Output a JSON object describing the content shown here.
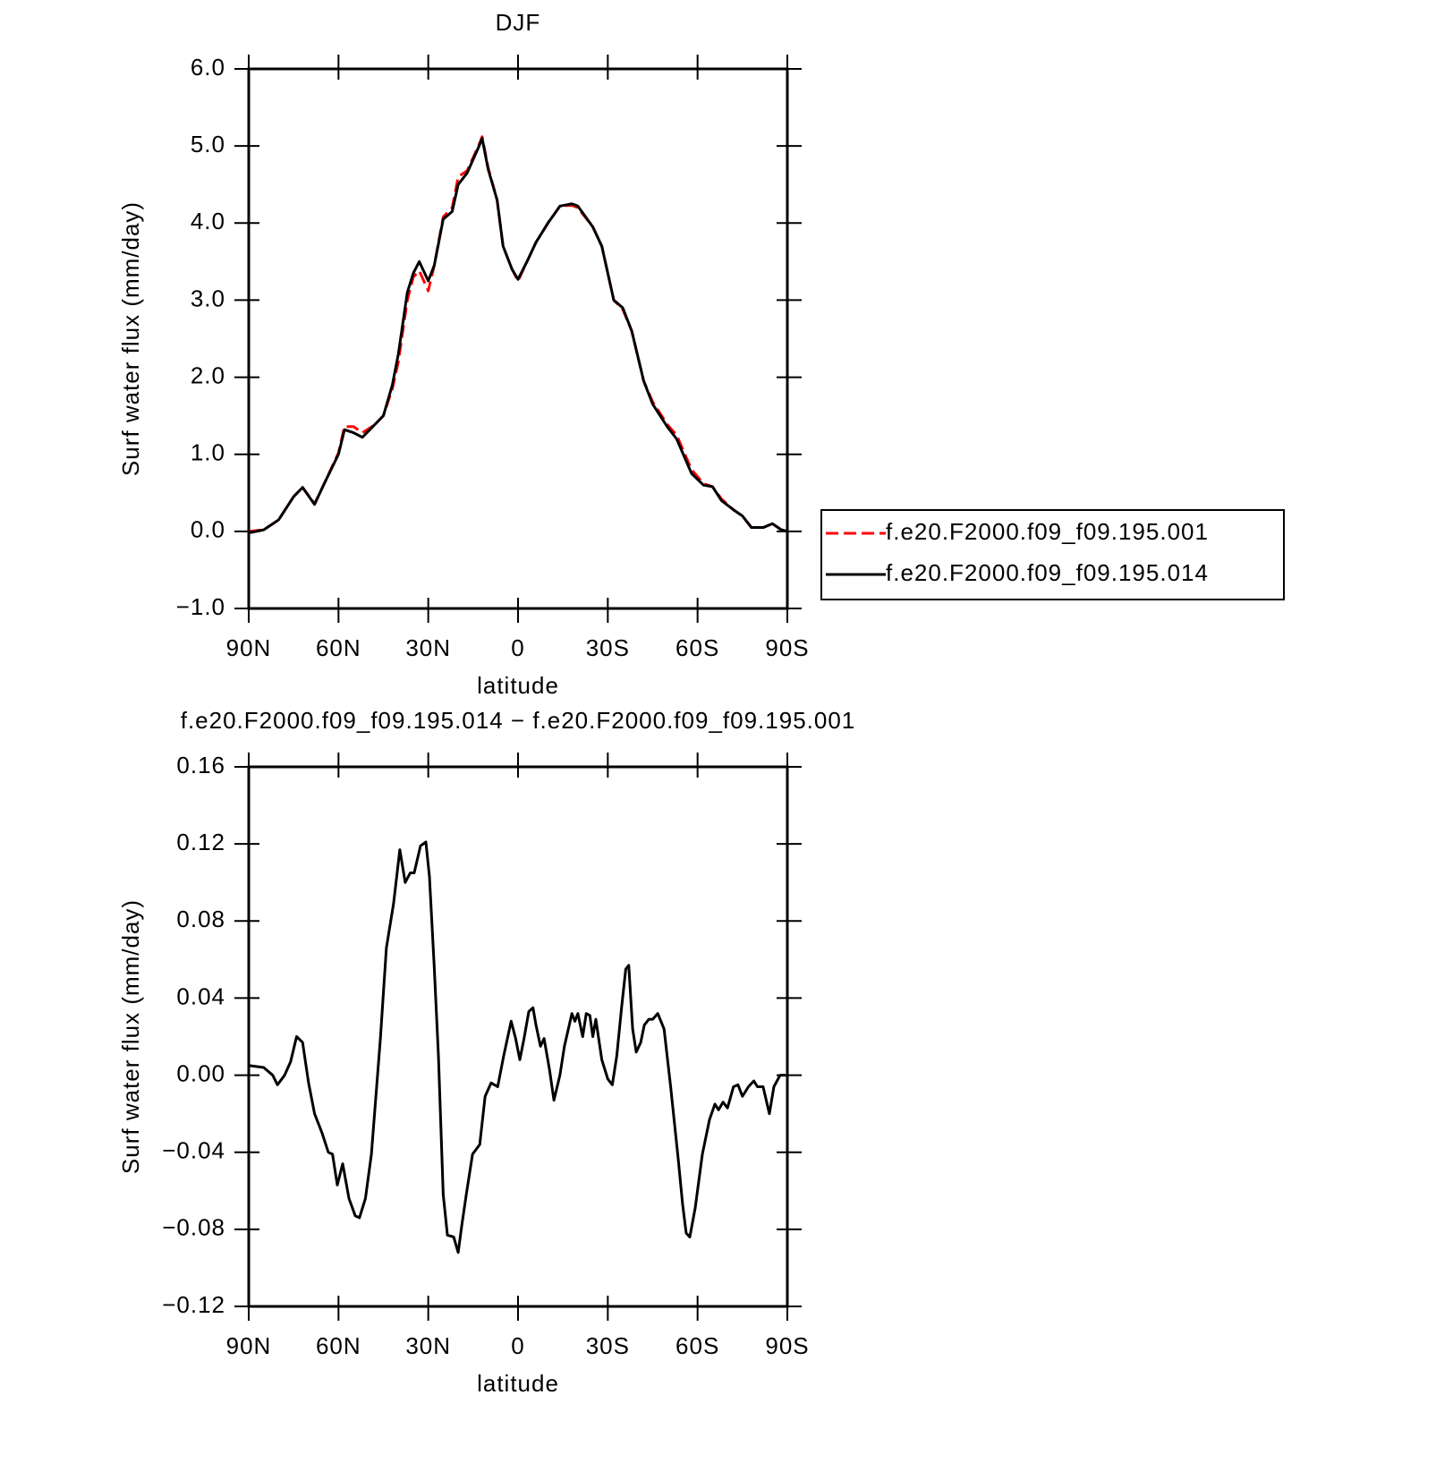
{
  "chart_data": [
    {
      "type": "line",
      "title": "DJF",
      "xlabel": "latitude",
      "ylabel": "Surf water flux (mm/day)",
      "x": [
        90,
        85,
        80,
        75,
        72,
        68,
        65,
        60,
        58,
        55,
        52,
        48,
        45,
        42,
        40,
        37,
        35,
        33,
        30,
        28,
        25,
        22,
        20,
        17,
        13,
        12,
        10,
        7,
        5,
        2,
        0,
        -3,
        -6,
        -10,
        -14,
        -18,
        -20,
        -25,
        -28,
        -32,
        -35,
        -38,
        -42,
        -45,
        -50,
        -53,
        -58,
        -62,
        -65,
        -68,
        -72,
        -75,
        -78,
        -82,
        -85,
        -88,
        -90
      ],
      "series": [
        {
          "name": "f.e20.F2000.f09_f09.195.001",
          "color": "#ff0000",
          "dash": true,
          "values": [
            0.0,
            0.02,
            0.15,
            0.45,
            0.57,
            0.36,
            0.6,
            1.02,
            1.36,
            1.36,
            1.28,
            1.38,
            1.5,
            1.85,
            2.2,
            3.0,
            3.3,
            3.38,
            3.12,
            3.45,
            4.08,
            4.2,
            4.6,
            4.68,
            5.02,
            5.12,
            4.72,
            4.3,
            3.7,
            3.4,
            3.25,
            3.5,
            3.75,
            4.0,
            4.22,
            4.23,
            4.2,
            3.95,
            3.7,
            3.0,
            2.88,
            2.6,
            1.95,
            1.68,
            1.38,
            1.25,
            0.8,
            0.62,
            0.58,
            0.42,
            0.28,
            0.2,
            0.05,
            0.05,
            0.1,
            0.02,
            0.0
          ]
        },
        {
          "name": "f.e20.F2000.f09_f09.195.014",
          "color": "#000000",
          "dash": false,
          "values": [
            -0.02,
            0.02,
            0.15,
            0.45,
            0.57,
            0.35,
            0.6,
            1.0,
            1.32,
            1.28,
            1.22,
            1.38,
            1.5,
            1.9,
            2.3,
            3.1,
            3.35,
            3.5,
            3.25,
            3.45,
            4.05,
            4.15,
            4.5,
            4.65,
            5.0,
            5.1,
            4.7,
            4.3,
            3.7,
            3.4,
            3.27,
            3.5,
            3.75,
            4.0,
            4.22,
            4.25,
            4.22,
            3.95,
            3.7,
            3.0,
            2.9,
            2.6,
            1.95,
            1.65,
            1.35,
            1.2,
            0.75,
            0.6,
            0.58,
            0.4,
            0.28,
            0.2,
            0.05,
            0.05,
            0.1,
            0.02,
            0.0
          ]
        }
      ],
      "xlim": [
        90,
        -90
      ],
      "xticks": [
        {
          "value": 90,
          "label": "90N"
        },
        {
          "value": 60,
          "label": "60N"
        },
        {
          "value": 30,
          "label": "30N"
        },
        0,
        {
          "value": -30,
          "label": "30S"
        },
        {
          "value": -60,
          "label": "60S"
        },
        {
          "value": -90,
          "label": "90S"
        }
      ],
      "ylim": [
        -1,
        6
      ],
      "yticks": [
        {
          "value": -1,
          "label": "−1.0"
        },
        {
          "value": 0,
          "label": "0.0"
        },
        {
          "value": 1,
          "label": "1.0"
        },
        {
          "value": 2,
          "label": "2.0"
        },
        {
          "value": 3,
          "label": "3.0"
        },
        {
          "value": 4,
          "label": "4.0"
        },
        {
          "value": 5,
          "label": "5.0"
        },
        {
          "value": 6,
          "label": "6.0"
        }
      ],
      "legend": "right"
    },
    {
      "type": "line",
      "title": "f.e20.F2000.f09_f09.195.014 − f.e20.F2000.f09_f09.195.001",
      "xlabel": "latitude",
      "ylabel": "Surf water flux (mm/day)",
      "x": [
        90,
        85,
        82,
        80.4,
        78,
        76,
        74,
        72,
        70,
        68,
        65.5,
        63.4,
        62,
        60.4,
        58.6,
        56.5,
        54.4,
        53,
        51,
        49,
        46,
        44,
        41.6,
        39.5,
        37.7,
        36,
        34.7,
        32.6,
        30.8,
        29.6,
        28,
        26.6,
        25,
        23.6,
        21.5,
        20,
        18.8,
        17.3,
        15.2,
        12.8,
        11,
        9,
        6.8,
        4.8,
        2.3,
        0.8,
        -0.6,
        -2,
        -3.6,
        -5,
        -6,
        -7.5,
        -8.7,
        -10.5,
        -12,
        -14,
        -15.5,
        -18,
        -19,
        -20,
        -21.6,
        -22.8,
        -24,
        -25,
        -26,
        -28,
        -30,
        -31.5,
        -33,
        -34.6,
        -36,
        -37,
        -38.3,
        -39.5,
        -41,
        -42.2,
        -43.7,
        -45,
        -46.7,
        -48.8,
        -51,
        -53.5,
        -55,
        -56.2,
        -57.4,
        -59.2,
        -61.6,
        -64,
        -65.8,
        -67,
        -68.5,
        -70,
        -72,
        -73.5,
        -75,
        -77,
        -78.8,
        -80,
        -81.9,
        -84,
        -85.5,
        -87.6,
        -89.4
      ],
      "series": [
        {
          "color": "#000000",
          "dash": false,
          "values": [
            0.005,
            0.004,
            0.0,
            -0.005,
            0.0,
            0.007,
            0.02,
            0.017,
            -0.004,
            -0.02,
            -0.03,
            -0.04,
            -0.041,
            -0.057,
            -0.046,
            -0.064,
            -0.073,
            -0.074,
            -0.064,
            -0.041,
            0.019,
            0.066,
            0.089,
            0.117,
            0.1,
            0.105,
            0.105,
            0.119,
            0.121,
            0.103,
            0.056,
            0.01,
            -0.062,
            -0.083,
            -0.084,
            -0.092,
            -0.078,
            -0.062,
            -0.041,
            -0.036,
            -0.011,
            -0.004,
            -0.006,
            0.01,
            0.028,
            0.019,
            0.008,
            0.019,
            0.033,
            0.035,
            0.026,
            0.015,
            0.019,
            0.003,
            -0.013,
            0.0,
            0.015,
            0.032,
            0.028,
            0.032,
            0.02,
            0.032,
            0.031,
            0.02,
            0.029,
            0.008,
            -0.002,
            -0.005,
            0.01,
            0.035,
            0.055,
            0.057,
            0.024,
            0.012,
            0.017,
            0.026,
            0.029,
            0.029,
            0.032,
            0.024,
            -0.006,
            -0.043,
            -0.067,
            -0.082,
            -0.084,
            -0.069,
            -0.041,
            -0.023,
            -0.015,
            -0.018,
            -0.014,
            -0.017,
            -0.006,
            -0.005,
            -0.011,
            -0.006,
            -0.003,
            -0.006,
            -0.006,
            -0.02,
            -0.006,
            0.0,
            0.0
          ]
        }
      ],
      "xlim": [
        90,
        -90
      ],
      "xticks": [
        {
          "value": 90,
          "label": "90N"
        },
        {
          "value": 60,
          "label": "60N"
        },
        {
          "value": 30,
          "label": "30N"
        },
        0,
        {
          "value": -30,
          "label": "30S"
        },
        {
          "value": -60,
          "label": "60S"
        },
        {
          "value": -90,
          "label": "90S"
        }
      ],
      "ylim": [
        -0.12,
        0.16
      ],
      "yticks": [
        {
          "value": -0.12,
          "label": "−0.12"
        },
        {
          "value": -0.08,
          "label": "−0.08"
        },
        {
          "value": -0.04,
          "label": "−0.04"
        },
        {
          "value": 0,
          "label": "0.00"
        },
        0.04,
        0.08,
        0.12,
        0.16
      ]
    }
  ]
}
